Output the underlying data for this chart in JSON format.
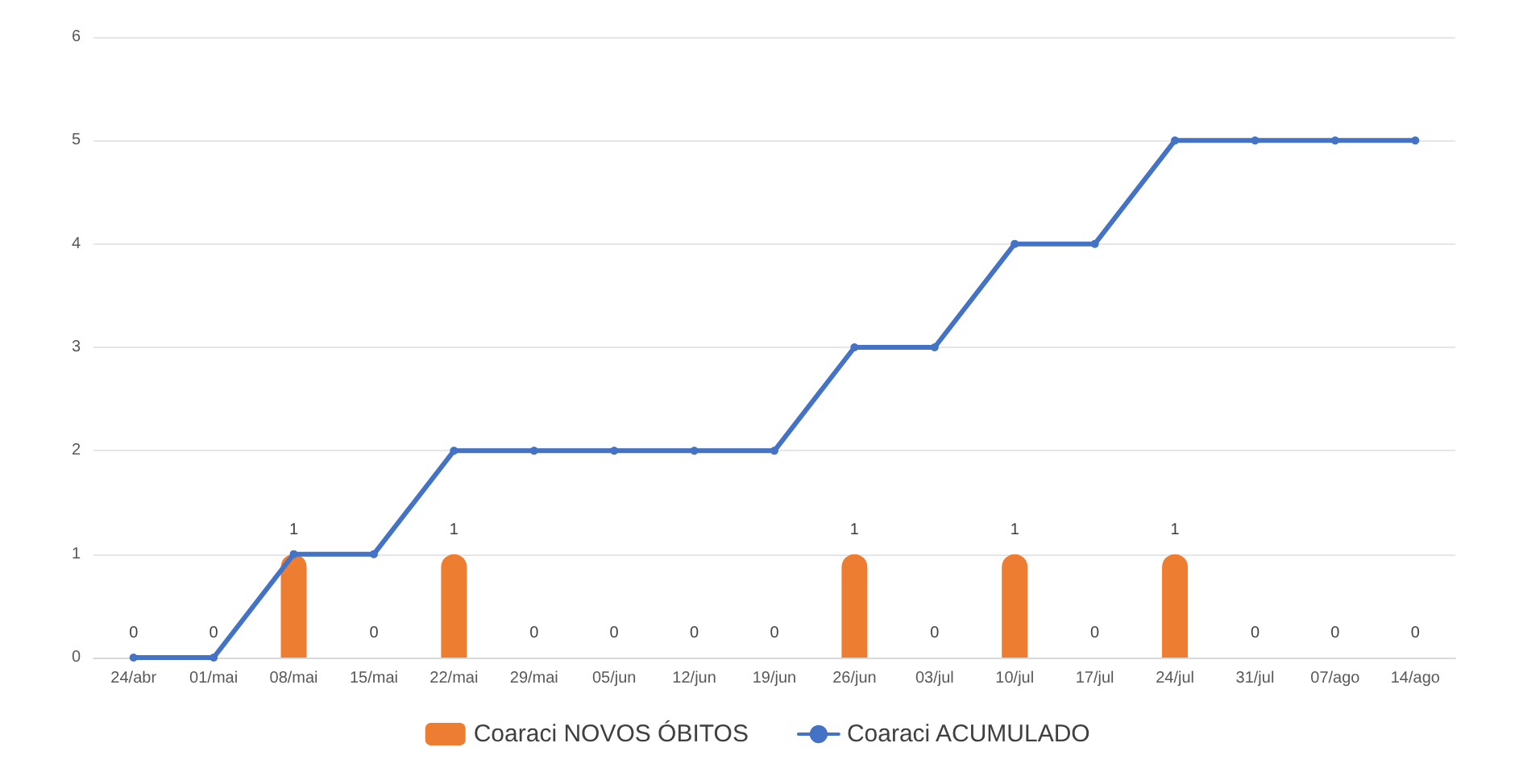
{
  "chart_data": {
    "type": "bar",
    "categories": [
      "24/abr",
      "01/mai",
      "08/mai",
      "15/mai",
      "22/mai",
      "29/mai",
      "05/jun",
      "12/jun",
      "19/jun",
      "26/jun",
      "03/jul",
      "10/jul",
      "17/jul",
      "24/jul",
      "31/jul",
      "07/ago",
      "14/ago"
    ],
    "series": [
      {
        "name": "Coaraci NOVOS ÓBITOS",
        "color": "#ed7d31",
        "values": [
          0,
          0,
          1,
          0,
          1,
          0,
          0,
          0,
          0,
          1,
          0,
          1,
          0,
          1,
          0,
          0,
          0
        ],
        "value_labels": [
          "0",
          "0",
          "1",
          "0",
          "1",
          "0",
          "0",
          "0",
          "0",
          "1",
          "0",
          "1",
          "0",
          "1",
          "0",
          "0",
          "0"
        ]
      },
      {
        "name": "Coaraci ACUMULADO",
        "type": "line",
        "color": "#4472c4",
        "values": [
          0,
          0,
          1,
          1,
          2,
          2,
          2,
          2,
          2,
          3,
          3,
          4,
          4,
          5,
          5,
          5,
          5
        ]
      }
    ],
    "ylim": [
      0,
      6
    ],
    "yticks": [
      0,
      1,
      2,
      3,
      4,
      5,
      6
    ],
    "grid": "y",
    "legend": "bottom",
    "marker": "circle",
    "line_style": "solid"
  }
}
